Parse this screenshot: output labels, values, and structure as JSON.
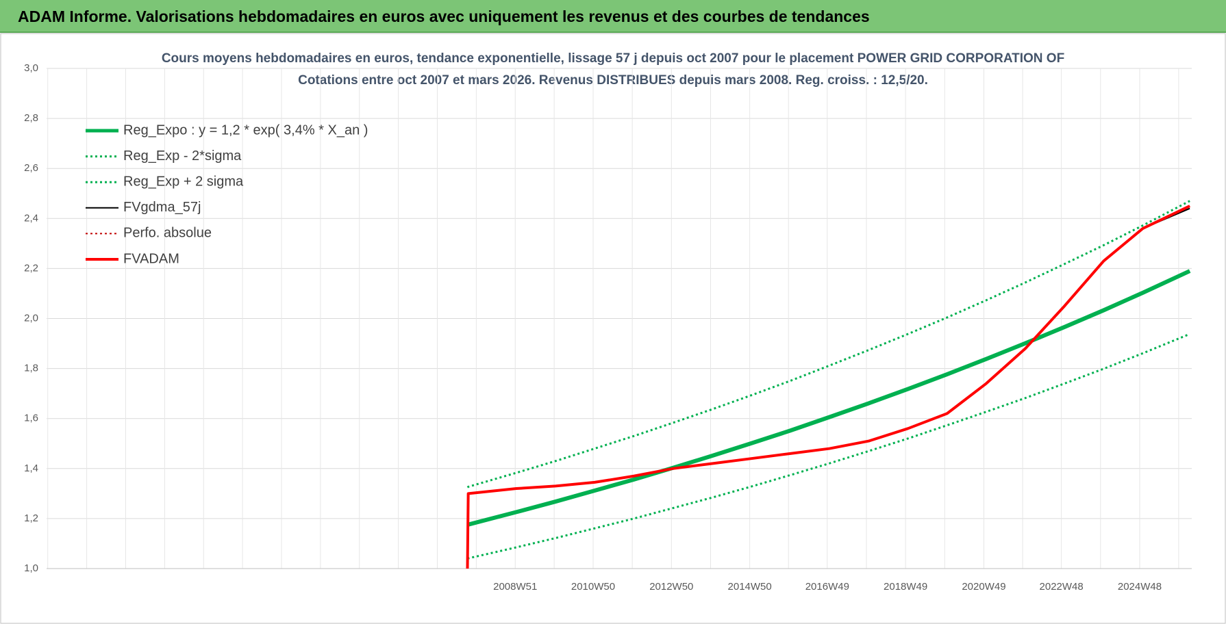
{
  "header": {
    "title": "ADAM Informe. Valorisations hebdomadaires en euros avec uniquement les revenus et des courbes de tendances"
  },
  "chart_data": {
    "type": "line",
    "title": "Cours moyens hebdomadaires en euros, tendance exponentielle, lissage 57 j depuis oct 2007 pour le placement POWER GRID CORPORATION OF",
    "subtitle": "Cotations entre oct 2007 et mars 2026. Revenus DISTRIBUES depuis mars 2008. Reg. croiss. : 12,5/20.",
    "x": [
      2007.75,
      2007.77,
      2009,
      2010,
      2011,
      2012,
      2013,
      2014,
      2015,
      2016,
      2017,
      2018,
      2019,
      2020,
      2021,
      2022,
      2023,
      2024,
      2025,
      2026.2
    ],
    "xlim": [
      1997,
      2026.25
    ],
    "xticks": [
      {
        "value": 2008.97,
        "label": "2008W51"
      },
      {
        "value": 2010.96,
        "label": "2010W50"
      },
      {
        "value": 2012.96,
        "label": "2012W50"
      },
      {
        "value": 2014.96,
        "label": "2014W50"
      },
      {
        "value": 2016.94,
        "label": "2016W49"
      },
      {
        "value": 2018.94,
        "label": "2018W49"
      },
      {
        "value": 2020.94,
        "label": "2020W49"
      },
      {
        "value": 2022.92,
        "label": "2022W48"
      },
      {
        "value": 2024.92,
        "label": "2024W48"
      }
    ],
    "ylim": [
      1.0,
      3.0
    ],
    "yticks": [
      {
        "value": 1.0,
        "label": "1,0"
      },
      {
        "value": 1.2,
        "label": "1,2"
      },
      {
        "value": 1.4,
        "label": "1,4"
      },
      {
        "value": 1.6,
        "label": "1,6"
      },
      {
        "value": 1.8,
        "label": "1,8"
      },
      {
        "value": 2.0,
        "label": "2,0"
      },
      {
        "value": 2.2,
        "label": "2,2"
      },
      {
        "value": 2.4,
        "label": "2,4"
      },
      {
        "value": 2.6,
        "label": "2,6"
      },
      {
        "value": 2.8,
        "label": "2,8"
      },
      {
        "value": 3.0,
        "label": "3,0"
      }
    ],
    "grid": true,
    "legend": "top-left",
    "series": [
      {
        "name": "Reg_Expo : y = 1,2 * exp( 3,4% *  X_an )",
        "color": "#00b050",
        "dash": "solid",
        "width": 6,
        "values": [
          1.175,
          1.176,
          1.226,
          1.268,
          1.312,
          1.356,
          1.403,
          1.451,
          1.501,
          1.552,
          1.606,
          1.661,
          1.718,
          1.777,
          1.838,
          1.901,
          1.966,
          2.033,
          2.103,
          2.19
        ]
      },
      {
        "name": "Reg_Exp - 2*sigma",
        "color": "#00b050",
        "dash": "dotted",
        "width": 3,
        "values": [
          1.04,
          1.041,
          1.085,
          1.122,
          1.161,
          1.2,
          1.242,
          1.284,
          1.328,
          1.374,
          1.421,
          1.47,
          1.52,
          1.573,
          1.627,
          1.682,
          1.74,
          1.799,
          1.861,
          1.938
        ]
      },
      {
        "name": "Reg_Exp + 2 sigma",
        "color": "#00b050",
        "dash": "dotted",
        "width": 3,
        "values": [
          1.325,
          1.327,
          1.383,
          1.43,
          1.48,
          1.53,
          1.583,
          1.637,
          1.693,
          1.751,
          1.812,
          1.874,
          1.938,
          2.004,
          2.073,
          2.144,
          2.218,
          2.293,
          2.372,
          2.47
        ]
      },
      {
        "name": "FVgdma_57j",
        "color": "#000000",
        "dash": "solid",
        "width": 2,
        "values": [
          null,
          1.3,
          1.32,
          1.33,
          1.345,
          1.37,
          1.4,
          1.42,
          1.44,
          1.46,
          1.48,
          1.51,
          1.56,
          1.62,
          1.74,
          1.88,
          2.05,
          2.23,
          2.36,
          2.44
        ]
      },
      {
        "name": "Perfo. absolue",
        "color": "#c00000",
        "dash": "dotted",
        "width": 2,
        "values": [
          null,
          1.3,
          1.32,
          1.33,
          1.345,
          1.37,
          1.4,
          1.42,
          1.44,
          1.46,
          1.48,
          1.51,
          1.56,
          1.62,
          1.74,
          1.88,
          2.05,
          2.23,
          2.36,
          2.45
        ]
      },
      {
        "name": "FVADAM",
        "color": "#ff0000",
        "dash": "solid",
        "width": 4,
        "values": [
          1.0,
          1.3,
          1.32,
          1.33,
          1.345,
          1.37,
          1.4,
          1.42,
          1.44,
          1.46,
          1.48,
          1.51,
          1.56,
          1.62,
          1.74,
          1.88,
          2.05,
          2.23,
          2.36,
          2.45
        ]
      }
    ]
  }
}
